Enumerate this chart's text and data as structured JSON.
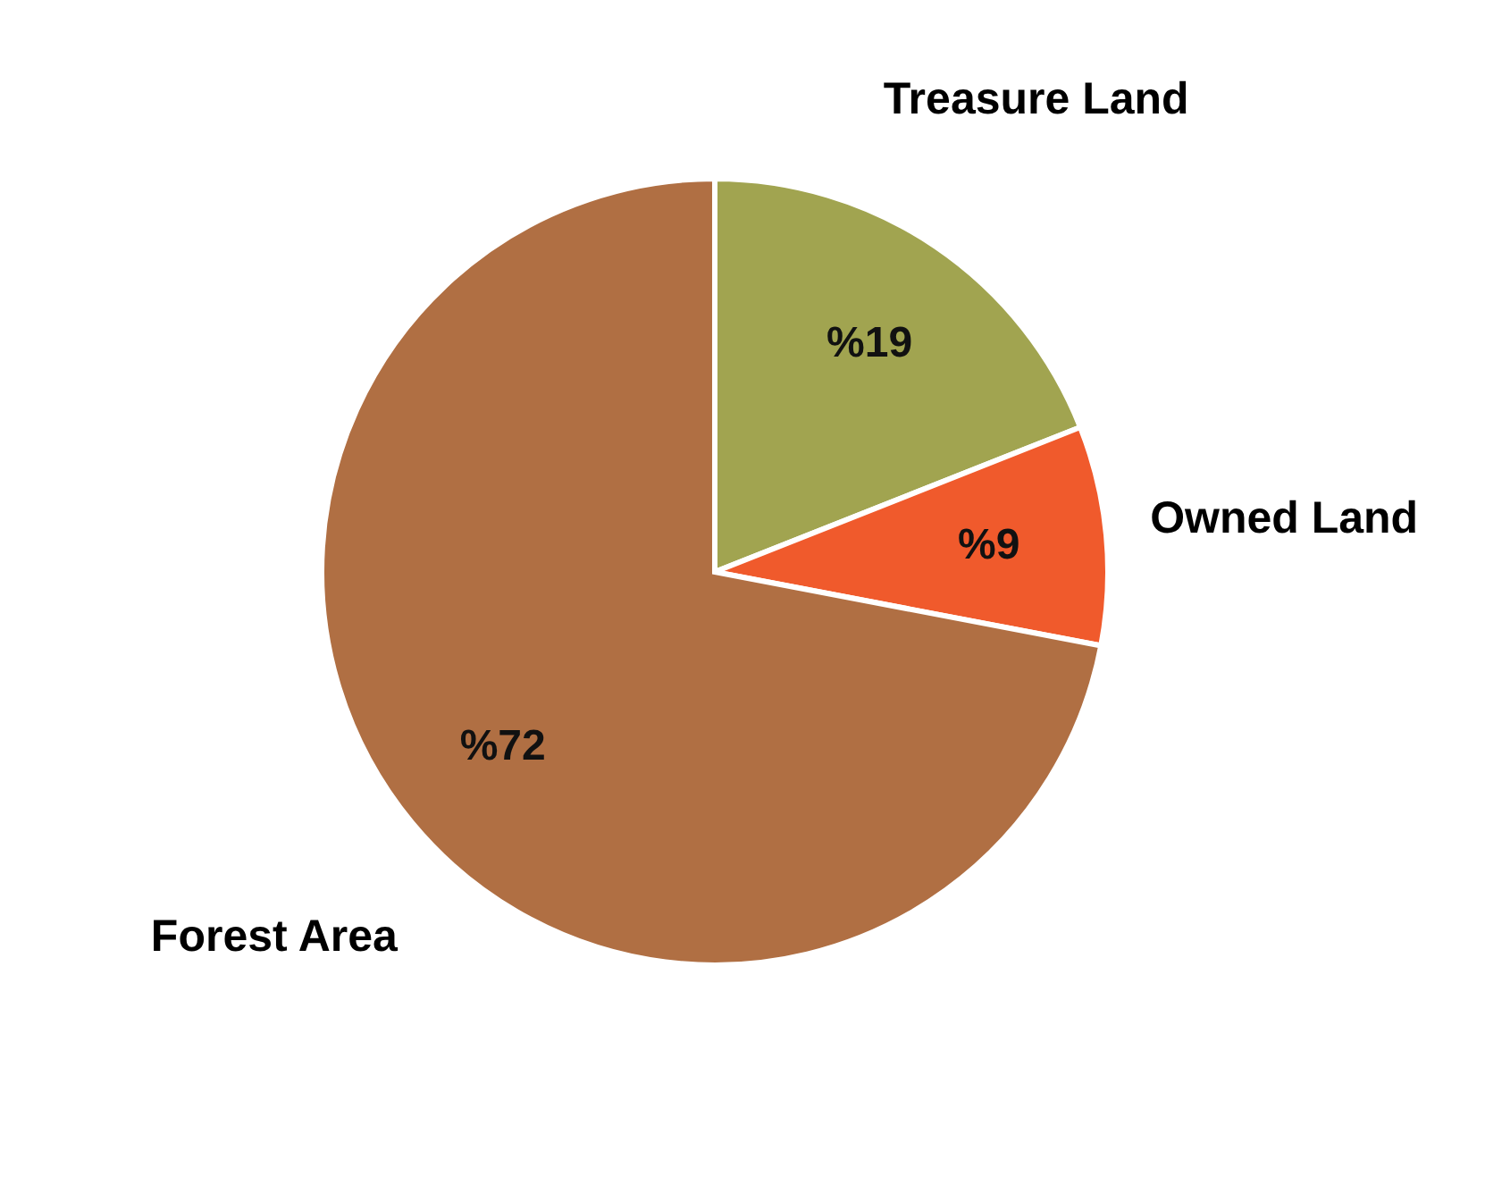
{
  "chart_data": {
    "type": "pie",
    "categories": [
      "Treasure Land",
      "Owned Land",
      "Forest Area"
    ],
    "values": [
      19,
      9,
      72
    ],
    "colors": [
      "#a1a450",
      "#f05a2c",
      "#b06f43"
    ],
    "value_labels": [
      "%19",
      "%9",
      "%72"
    ],
    "legend": false
  }
}
